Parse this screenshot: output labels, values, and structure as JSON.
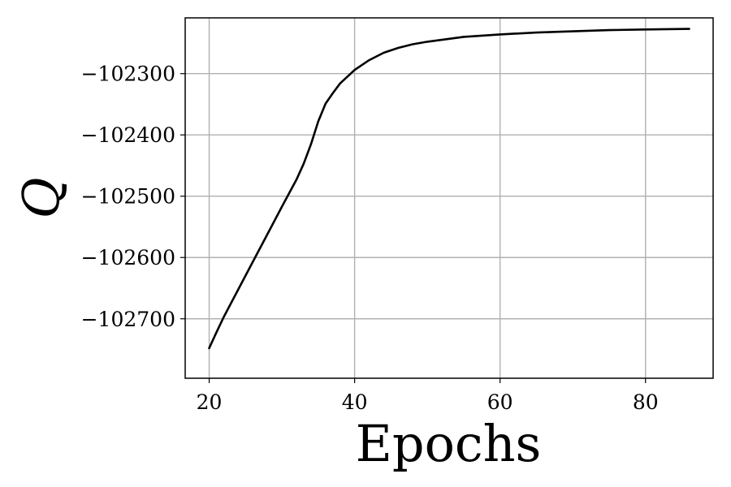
{
  "chart_data": {
    "type": "line",
    "xlabel": "Epochs",
    "ylabel": "Q",
    "xlim": [
      16.7,
      89.3
    ],
    "ylim": [
      -102797,
      -102209
    ],
    "x_ticks": [
      20,
      40,
      60,
      80
    ],
    "y_ticks": [
      -102700,
      -102600,
      -102500,
      -102400,
      -102300
    ],
    "x_tick_labels": [
      "20",
      "40",
      "60",
      "80"
    ],
    "y_tick_labels": [
      "−102700",
      "−102600",
      "−102500",
      "−102400",
      "−102300"
    ],
    "grid": true,
    "line_color": "#000000",
    "grid_color": "#b0b0b0",
    "series": [
      {
        "x": [
          20,
          21,
          22,
          24,
          26,
          28,
          30,
          32,
          33,
          34,
          35,
          36,
          37,
          38,
          40,
          42,
          44,
          46,
          48,
          50,
          55,
          60,
          65,
          70,
          75,
          80,
          86
        ],
        "y": [
          -102748,
          -102722,
          -102697,
          -102652,
          -102607,
          -102562,
          -102517,
          -102473,
          -102447,
          -102415,
          -102378,
          -102349,
          -102332,
          -102316,
          -102294,
          -102278,
          -102266,
          -102258,
          -102252,
          -102248,
          -102240,
          -102236,
          -102233,
          -102231,
          -102229,
          -102228,
          -102227
        ]
      }
    ]
  }
}
